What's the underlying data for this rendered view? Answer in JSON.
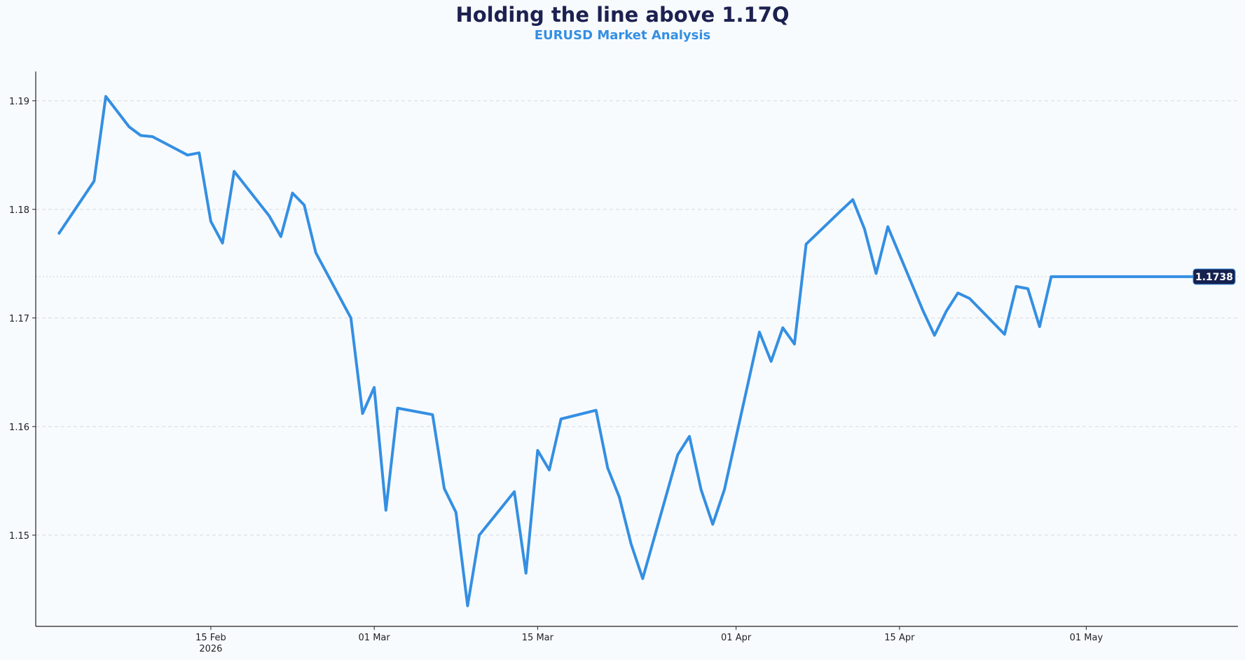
{
  "title": "Holding the line above 1.17Q",
  "subtitle": "EURUSD Market Analysis",
  "colors": {
    "line": "#348fe2",
    "title": "#1c2150",
    "subtitle": "#348fe2",
    "badge_bg": "#16214f",
    "grid": "#d4d9df",
    "background": "#f8fbfe"
  },
  "chart_data": {
    "type": "line",
    "title": "Holding the line above 1.17Q",
    "subtitle": "EURUSD Market Analysis",
    "xlabel": "",
    "ylabel": "",
    "xlim": [
      "2026-01-31",
      "2026-05-14"
    ],
    "ylim": [
      1.1416,
      1.1927
    ],
    "grid": "horizontal dashed",
    "y_ticks": [
      "1.15",
      "1.16",
      "1.17",
      "1.18",
      "1.19"
    ],
    "x_ticks": [
      {
        "date": "2026-02-15",
        "label": "15 Feb",
        "sublabel": "2026"
      },
      {
        "date": "2026-03-01",
        "label": "01 Mar",
        "sublabel": ""
      },
      {
        "date": "2026-03-15",
        "label": "15 Mar",
        "sublabel": ""
      },
      {
        "date": "2026-04-01",
        "label": "01 Apr",
        "sublabel": ""
      },
      {
        "date": "2026-04-15",
        "label": "15 Apr",
        "sublabel": ""
      },
      {
        "date": "2026-05-01",
        "label": "01 May",
        "sublabel": ""
      }
    ],
    "last_value_label": "1.1738",
    "last_value": 1.1738,
    "series": [
      {
        "x": [
          "2026-02-02",
          "2026-02-05",
          "2026-02-06",
          "2026-02-08",
          "2026-02-09",
          "2026-02-10",
          "2026-02-13",
          "2026-02-14",
          "2026-02-15",
          "2026-02-16",
          "2026-02-17",
          "2026-02-20",
          "2026-02-21",
          "2026-02-22",
          "2026-02-23",
          "2026-02-24",
          "2026-02-27",
          "2026-02-28",
          "2026-03-01",
          "2026-03-02",
          "2026-03-03",
          "2026-03-06",
          "2026-03-07",
          "2026-03-08",
          "2026-03-09",
          "2026-03-10",
          "2026-03-13",
          "2026-03-14",
          "2026-03-15",
          "2026-03-16",
          "2026-03-17",
          "2026-03-20",
          "2026-03-21",
          "2026-03-22",
          "2026-03-23",
          "2026-03-24",
          "2026-03-27",
          "2026-03-28",
          "2026-03-29",
          "2026-03-30",
          "2026-03-31",
          "2026-04-03",
          "2026-04-04",
          "2026-04-05",
          "2026-04-06",
          "2026-04-07",
          "2026-04-10",
          "2026-04-11",
          "2026-04-12",
          "2026-04-13",
          "2026-04-14",
          "2026-04-17",
          "2026-04-18",
          "2026-04-19",
          "2026-04-20",
          "2026-04-21",
          "2026-04-24",
          "2026-04-25",
          "2026-04-26",
          "2026-04-27",
          "2026-04-28",
          "2026-05-01",
          "2026-05-02",
          "2026-05-03",
          "2026-05-04",
          "2026-05-05",
          "2026-05-08",
          "2026-05-09",
          "2026-05-10",
          "2026-05-11",
          "2026-05-12"
        ],
        "y": [
          1.1778,
          1.1826,
          1.1904,
          1.1876,
          1.1868,
          1.1867,
          1.185,
          1.1852,
          1.1789,
          1.1769,
          1.1835,
          1.1794,
          1.1775,
          1.1815,
          1.1804,
          1.176,
          1.17,
          1.1612,
          1.1636,
          1.1523,
          1.1617,
          1.1611,
          1.1543,
          1.1521,
          1.1435,
          1.15,
          1.154,
          1.1465,
          1.1578,
          1.156,
          1.1607,
          1.1615,
          1.1562,
          1.1535,
          1.1492,
          1.146,
          1.1574,
          1.1591,
          1.1542,
          1.151,
          1.1542,
          1.1687,
          1.166,
          1.1691,
          1.1676,
          1.1768,
          1.1799,
          1.1809,
          1.1782,
          1.1741,
          1.1784,
          1.1707,
          1.1684,
          1.1706,
          1.1723,
          1.1718,
          1.1685,
          1.1729,
          1.1727,
          1.1692,
          1.1738,
          1.1738,
          1.1738,
          1.1738,
          1.1738,
          1.1738,
          1.1738,
          1.1738,
          1.1738,
          1.1738,
          1.1738
        ]
      }
    ]
  }
}
